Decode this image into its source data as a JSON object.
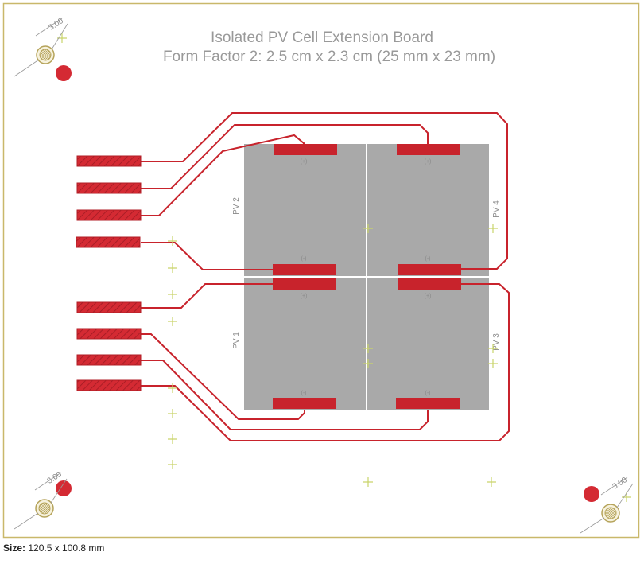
{
  "title": "Isolated PV Cell Extension Board",
  "subtitle": "Form Factor 2: 2.5 cm x 2.3 cm (25 mm x 23 mm)",
  "cells": [
    {
      "label": "PV 2",
      "top_pad": "(+)",
      "bottom_pad": "(-)"
    },
    {
      "label": "PV 4",
      "top_pad": "(+)",
      "bottom_pad": "(-)"
    },
    {
      "label": "PV 1",
      "top_pad": "(+)",
      "bottom_pad": "(-)"
    },
    {
      "label": "PV 3",
      "top_pad": "(+)",
      "bottom_pad": "(-)"
    }
  ],
  "holes": [
    {
      "dimension": "3.00"
    },
    {
      "dimension": "3.00"
    },
    {
      "dimension": "3.00"
    }
  ],
  "footer": {
    "size_label": "Size:",
    "size_value": "120.5 x 100.8 mm"
  },
  "colors": {
    "board_border": "#c9b86a",
    "copper": "#c8232c",
    "cell": "#a9a9a9",
    "silk_text": "#9a9a9a",
    "marker": "#c9d46a"
  }
}
